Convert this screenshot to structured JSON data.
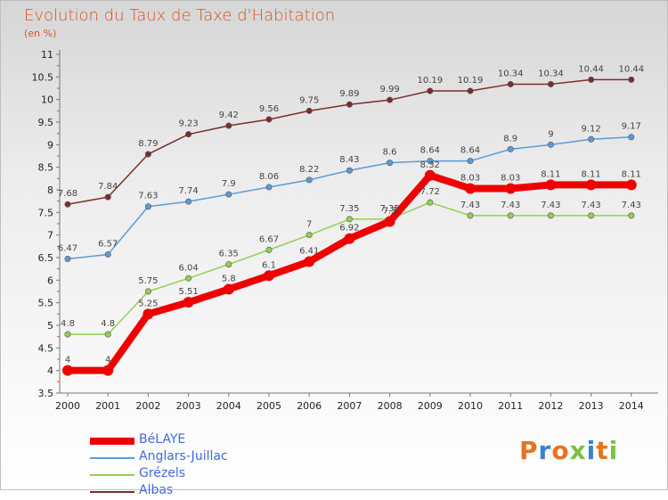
{
  "title": "Evolution du Taux de Taxe d'Habitation",
  "unit": "(en %)",
  "logo": {
    "text": "Proxiti",
    "letter_colors": [
      "#e8731e",
      "#3a7fd0",
      "#e8731e",
      "#7cc242",
      "#3a7fd0",
      "#e8731e",
      "#7cc242"
    ]
  },
  "chart_data": {
    "type": "line",
    "x": [
      "2000",
      "2001",
      "2002",
      "2003",
      "2004",
      "2005",
      "2006",
      "2007",
      "2008",
      "2009",
      "2010",
      "2011",
      "2012",
      "2013",
      "2014"
    ],
    "ylim": [
      3.5,
      11
    ],
    "yticks": [
      "3.5",
      "4",
      "4.5",
      "5",
      "5.5",
      "6",
      "6.5",
      "7",
      "7.5",
      "8",
      "8.5",
      "9",
      "9.5",
      "10",
      "10.5",
      "11"
    ],
    "legend_position": "bottom-left",
    "series": [
      {
        "name": "BéLAYE",
        "color": "#ee0000",
        "values": [
          4,
          4,
          5.25,
          5.51,
          5.8,
          6.1,
          6.41,
          6.92,
          7.3,
          8.32,
          8.03,
          8.03,
          8.11,
          8.11,
          8.11
        ],
        "labels": [
          "4",
          "4",
          "5.25",
          "5.51",
          "5.8",
          "6.1",
          "6.41",
          "6.92",
          "7.3",
          "8.32",
          "8.03",
          "8.03",
          "8.11",
          "8.11",
          "8.11"
        ]
      },
      {
        "name": "Anglars-Juillac",
        "color": "#5b9bd5",
        "values": [
          6.47,
          6.57,
          7.63,
          7.74,
          7.9,
          8.06,
          8.22,
          8.43,
          8.6,
          8.64,
          8.64,
          8.9,
          9,
          9.12,
          9.17
        ],
        "labels": [
          "6.47",
          "6.57",
          "7.63",
          "7.74",
          "7.9",
          "8.06",
          "8.22",
          "8.43",
          "8.6",
          "8.64",
          "8.64",
          "8.9",
          "9",
          "9.12",
          "9.17"
        ]
      },
      {
        "name": "Grézels",
        "color": "#92d050",
        "values": [
          4.8,
          4.8,
          5.75,
          6.04,
          6.35,
          6.67,
          7,
          7.35,
          7.35,
          7.72,
          7.43,
          7.43,
          7.43,
          7.43,
          7.43
        ],
        "labels": [
          "4.8",
          "4.8",
          "5.75",
          "6.04",
          "6.35",
          "6.67",
          "7",
          "7.35",
          "7.35",
          "7.72",
          "7.43",
          "7.43",
          "7.43",
          "7.43",
          "7.43"
        ]
      },
      {
        "name": "Albas",
        "color": "#7b2d2d",
        "values": [
          7.68,
          7.84,
          8.79,
          9.23,
          9.42,
          9.56,
          9.75,
          9.89,
          9.99,
          10.19,
          10.19,
          10.34,
          10.34,
          10.44,
          10.44
        ],
        "labels": [
          "7.68",
          "7.84",
          "8.79",
          "9.23",
          "9.42",
          "9.56",
          "9.75",
          "9.89",
          "9.99",
          "10.19",
          "10.19",
          "10.34",
          "10.34",
          "10.44",
          "10.44"
        ]
      }
    ]
  }
}
